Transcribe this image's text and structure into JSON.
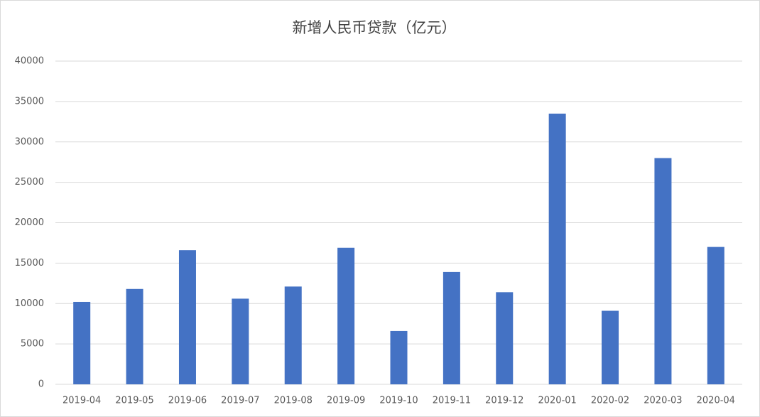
{
  "chart_data": {
    "type": "bar",
    "title": "新增人民币贷款（亿元）",
    "categories": [
      "2019-04",
      "2019-05",
      "2019-06",
      "2019-07",
      "2019-08",
      "2019-09",
      "2019-10",
      "2019-11",
      "2019-12",
      "2020-01",
      "2020-02",
      "2020-03",
      "2020-04"
    ],
    "values": [
      10200,
      11800,
      16600,
      10600,
      12100,
      16900,
      6600,
      13900,
      11400,
      33500,
      9100,
      28000,
      17000
    ],
    "color": "#4472c4",
    "ylim": [
      0,
      40000
    ],
    "yticks": [
      0,
      5000,
      10000,
      15000,
      20000,
      25000,
      30000,
      35000,
      40000
    ],
    "grid": true
  }
}
